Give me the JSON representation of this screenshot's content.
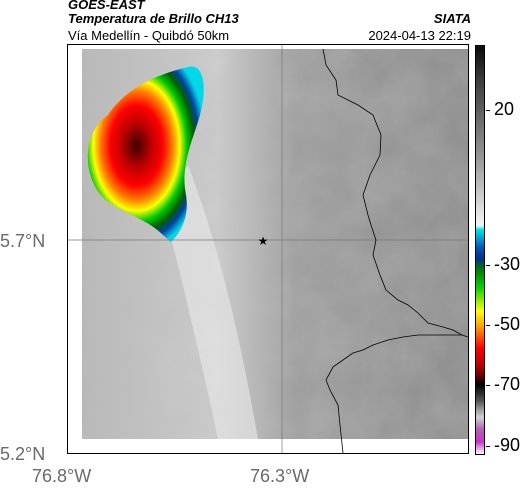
{
  "header": {
    "satellite": "GOES-EAST",
    "product": "Temperatura de Brillo CH13",
    "region": "Vía Medellín - Quibdó 50km",
    "agency": "SIATA",
    "datetime": "2024-04-13 22:19"
  },
  "map": {
    "lat_labels": [
      "5.7°N",
      "5.2°N"
    ],
    "lon_labels": [
      "76.8°W",
      "76.3°W"
    ],
    "marker_icon": "star-icon"
  },
  "colorbar": {
    "labels": [
      "20",
      "-30",
      "-50",
      "-70",
      "-90"
    ]
  }
}
